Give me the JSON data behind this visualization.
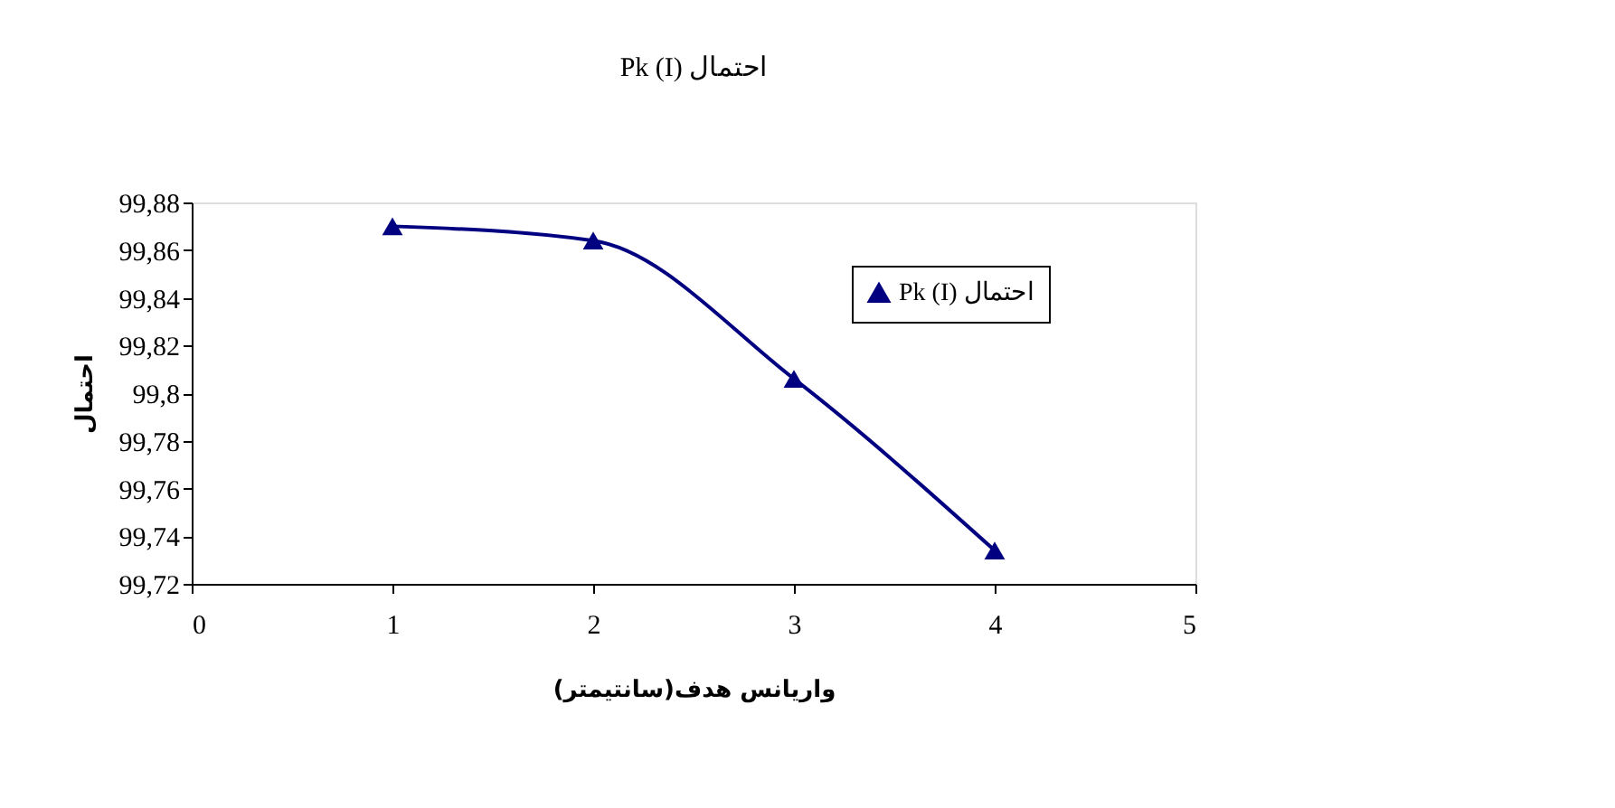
{
  "chart_data": {
    "type": "line",
    "title": "Pk (I) احتمال",
    "xlabel": "واریانس هدف(سانتیمتر)",
    "ylabel": "احتمال",
    "x": [
      1,
      2,
      3,
      4
    ],
    "series": [
      {
        "name": "Pk (I) احتمال",
        "color": "#000080",
        "values": [
          99.87,
          99.864,
          99.806,
          99.734
        ]
      }
    ],
    "xlim": [
      0,
      5
    ],
    "xticks": [
      0,
      1,
      2,
      3,
      4,
      5
    ],
    "ylim": [
      99.72,
      99.88
    ],
    "yticks": [
      {
        "value": 99.72,
        "label": "99,72"
      },
      {
        "value": 99.74,
        "label": "99,74"
      },
      {
        "value": 99.76,
        "label": "99,76"
      },
      {
        "value": 99.78,
        "label": "99,78"
      },
      {
        "value": 99.8,
        "label": "99,8"
      },
      {
        "value": 99.82,
        "label": "99,82"
      },
      {
        "value": 99.84,
        "label": "99,84"
      },
      {
        "value": 99.86,
        "label": "99,86"
      },
      {
        "value": 99.88,
        "label": "99,88"
      }
    ],
    "grid": false,
    "legend": "right",
    "marker": "triangle",
    "line_style": "solid"
  }
}
